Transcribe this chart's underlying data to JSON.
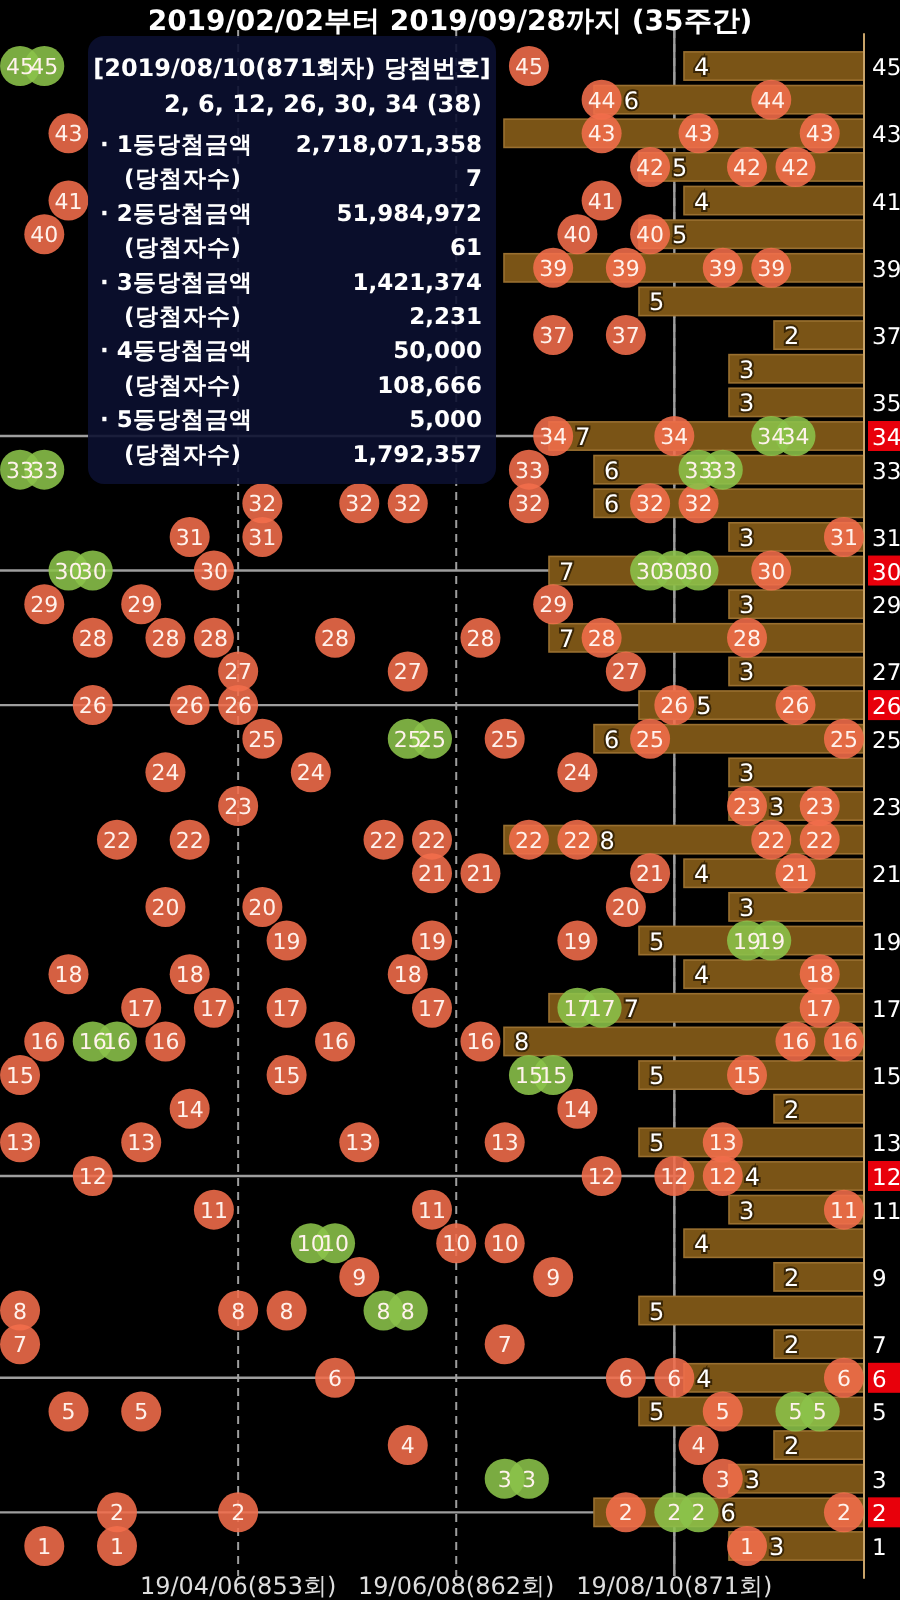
{
  "chart_data": [
    {
      "type": "scatter",
      "title": "2019/02/02부터 2019/09/28까지 (35주간)",
      "xlim": [
        "2019-01-27T05:00",
        "2019-10-03T19:00"
      ],
      "xticks": [
        {
          "value": "2019-04-06",
          "label": "19/04/06(853회)"
        },
        {
          "value": "2019-06-08",
          "label": "19/06/08(862회)"
        },
        {
          "value": "2019-08-10",
          "label": "19/08/10(871회)"
        }
      ],
      "grid": "x",
      "marker": "circle",
      "data_labels": true,
      "tick_labels": "x",
      "ref_lines": [
        {
          "axis": "x",
          "value": "2019-08-10",
          "color": "#9e9e9e"
        },
        {
          "axis": "y",
          "value": 34,
          "color": "#9e9e9e"
        },
        {
          "axis": "y",
          "value": 30,
          "color": "#9e9e9e"
        },
        {
          "axis": "y",
          "value": 26,
          "color": "#9e9e9e"
        },
        {
          "axis": "y",
          "value": 12,
          "color": "#9e9e9e"
        },
        {
          "axis": "y",
          "value": 6,
          "color": "#9e9e9e"
        },
        {
          "axis": "y",
          "value": 2,
          "color": "#9e9e9e"
        }
      ],
      "series": [
        {
          "color": "#f26d4b",
          "x": [
            "2019-02-02",
            "2019-02-02",
            "2019-02-02",
            "2019-02-02",
            "2019-02-09",
            "2019-02-09",
            "2019-02-09",
            "2019-02-09",
            "2019-02-16",
            "2019-02-16",
            "2019-02-16",
            "2019-02-16",
            "2019-02-23",
            "2019-02-23",
            "2019-02-23",
            "2019-03-02",
            "2019-03-02",
            "2019-03-02",
            "2019-03-09",
            "2019-03-09",
            "2019-03-09",
            "2019-03-09",
            "2019-03-16",
            "2019-03-16",
            "2019-03-16",
            "2019-03-16",
            "2019-03-23",
            "2019-03-23",
            "2019-03-23",
            "2019-03-23",
            "2019-03-23",
            "2019-03-30",
            "2019-03-30",
            "2019-03-30",
            "2019-03-30",
            "2019-04-06",
            "2019-04-06",
            "2019-04-06",
            "2019-04-06",
            "2019-04-06",
            "2019-04-13",
            "2019-04-13",
            "2019-04-13",
            "2019-04-13",
            "2019-04-20",
            "2019-04-20",
            "2019-04-20",
            "2019-04-20",
            "2019-04-27",
            "2019-05-04",
            "2019-05-04",
            "2019-05-04",
            "2019-05-11",
            "2019-05-11",
            "2019-05-11",
            "2019-05-18",
            "2019-05-25",
            "2019-05-25",
            "2019-05-25",
            "2019-05-25",
            "2019-06-01",
            "2019-06-01",
            "2019-06-01",
            "2019-06-01",
            "2019-06-01",
            "2019-06-08",
            "2019-06-15",
            "2019-06-15",
            "2019-06-15",
            "2019-06-22",
            "2019-06-22",
            "2019-06-22",
            "2019-06-22",
            "2019-06-29",
            "2019-06-29",
            "2019-06-29",
            "2019-06-29",
            "2019-07-06",
            "2019-07-06",
            "2019-07-06",
            "2019-07-06",
            "2019-07-06",
            "2019-07-13",
            "2019-07-13",
            "2019-07-13",
            "2019-07-13",
            "2019-07-13",
            "2019-07-20",
            "2019-07-20",
            "2019-07-20",
            "2019-07-20",
            "2019-07-20",
            "2019-07-27",
            "2019-07-27",
            "2019-07-27",
            "2019-07-27",
            "2019-07-27",
            "2019-07-27",
            "2019-08-03",
            "2019-08-03",
            "2019-08-03",
            "2019-08-03",
            "2019-08-03",
            "2019-08-10",
            "2019-08-10",
            "2019-08-10",
            "2019-08-10",
            "2019-08-17",
            "2019-08-17",
            "2019-08-17",
            "2019-08-24",
            "2019-08-24",
            "2019-08-24",
            "2019-08-24",
            "2019-08-24",
            "2019-08-31",
            "2019-08-31",
            "2019-08-31",
            "2019-08-31",
            "2019-08-31",
            "2019-09-07",
            "2019-09-07",
            "2019-09-07",
            "2019-09-07",
            "2019-09-14",
            "2019-09-14",
            "2019-09-14",
            "2019-09-14",
            "2019-09-21",
            "2019-09-21",
            "2019-09-21",
            "2019-09-21",
            "2019-09-21",
            "2019-09-28",
            "2019-09-28",
            "2019-09-28",
            "2019-09-28",
            "2019-09-28",
            "2019-09-28"
          ],
          "values": [
            15,
            13,
            8,
            7,
            40,
            29,
            16,
            1,
            43,
            41,
            18,
            5,
            28,
            26,
            12,
            22,
            2,
            1,
            29,
            17,
            13,
            5,
            28,
            24,
            20,
            16,
            31,
            26,
            22,
            18,
            14,
            30,
            28,
            17,
            11,
            27,
            26,
            23,
            8,
            2,
            32,
            31,
            25,
            20,
            19,
            17,
            15,
            8,
            24,
            28,
            16,
            6,
            32,
            13,
            9,
            22,
            32,
            27,
            18,
            4,
            22,
            21,
            19,
            17,
            11,
            10,
            28,
            21,
            16,
            25,
            13,
            10,
            7,
            45,
            33,
            32,
            22,
            39,
            37,
            34,
            29,
            9,
            40,
            24,
            22,
            19,
            14,
            44,
            43,
            41,
            28,
            12,
            39,
            37,
            27,
            20,
            6,
            2,
            42,
            40,
            32,
            25,
            21,
            34,
            26,
            12,
            6,
            43,
            32,
            4,
            39,
            13,
            12,
            5,
            3,
            42,
            28,
            23,
            15,
            1,
            44,
            39,
            30,
            22,
            42,
            26,
            21,
            16,
            43,
            23,
            22,
            18,
            17,
            31,
            25,
            16,
            11,
            6,
            2
          ]
        },
        {
          "color": "#8bc34a",
          "x": [
            "2019-02-02",
            "2019-02-02",
            "2019-02-09",
            "2019-02-09",
            "2019-02-16",
            "2019-02-23",
            "2019-02-23",
            "2019-03-02",
            "2019-04-27",
            "2019-05-04",
            "2019-05-18",
            "2019-05-25",
            "2019-05-25",
            "2019-06-01",
            "2019-06-22",
            "2019-06-29",
            "2019-06-29",
            "2019-07-06",
            "2019-07-13",
            "2019-07-20",
            "2019-08-03",
            "2019-08-10",
            "2019-08-10",
            "2019-08-17",
            "2019-08-17",
            "2019-08-17",
            "2019-08-24",
            "2019-08-31",
            "2019-09-07",
            "2019-09-07",
            "2019-09-14",
            "2019-09-14",
            "2019-09-21"
          ],
          "values": [
            45,
            33,
            45,
            33,
            30,
            30,
            16,
            16,
            10,
            10,
            8,
            8,
            25,
            25,
            3,
            3,
            15,
            15,
            17,
            17,
            30,
            30,
            2,
            30,
            2,
            33,
            33,
            19,
            19,
            34,
            34,
            5,
            5
          ]
        }
      ],
      "annotations": [
        "[2019/08/10(871회차) 당첨번호]",
        "2, 6, 12, 26, 30, 34 (38)",
        "· 1등당첨금액",
        "2,718,071,358",
        "(당첨자수)",
        "7",
        "· 2등당첨금액",
        "51,984,972",
        "(당첨자수)",
        "61",
        "· 3등당첨금액",
        "1,421,374",
        "(당첨자수)",
        "2,231",
        "· 4등당첨금액",
        "50,000",
        "(당첨자수)",
        "108,666",
        "· 5등당첨금액",
        "5,000",
        "(당첨자수)",
        "1,792,357"
      ]
    },
    {
      "type": "bar",
      "orientation": "horizontal",
      "color": "#7a5416",
      "tick_labels": "y",
      "categories": [
        "45",
        null,
        "43",
        null,
        "41",
        null,
        "39",
        null,
        "37",
        null,
        "35",
        "34",
        "33",
        null,
        "31",
        "30",
        "29",
        null,
        "27",
        "26",
        "25",
        null,
        "23",
        null,
        "21",
        null,
        "19",
        null,
        "17",
        null,
        "15",
        null,
        "13",
        "12",
        "11",
        null,
        "9",
        null,
        "7",
        "6",
        "5",
        null,
        "3",
        "2",
        "1"
      ],
      "values": [
        4,
        6,
        8,
        5,
        4,
        5,
        8,
        5,
        2,
        3,
        3,
        7,
        6,
        6,
        3,
        7,
        3,
        7,
        3,
        5,
        6,
        3,
        3,
        8,
        4,
        3,
        5,
        4,
        7,
        8,
        5,
        2,
        5,
        4,
        3,
        4,
        2,
        5,
        2,
        4,
        5,
        2,
        3,
        6,
        3
      ],
      "value_labels": [
        "4",
        "6",
        null,
        "5",
        "4",
        "5",
        null,
        "5",
        "2",
        "3",
        "3",
        "7",
        "6",
        "6",
        "3",
        "7",
        "3",
        "7",
        "3",
        "5",
        "6",
        "3",
        "3",
        "8",
        "4",
        "3",
        "5",
        "4",
        "7",
        "8",
        "5",
        "2",
        "5",
        "4",
        "3",
        "4",
        "2",
        "5",
        "2",
        "4",
        "5",
        "2",
        "3",
        "6",
        "3"
      ]
    }
  ]
}
